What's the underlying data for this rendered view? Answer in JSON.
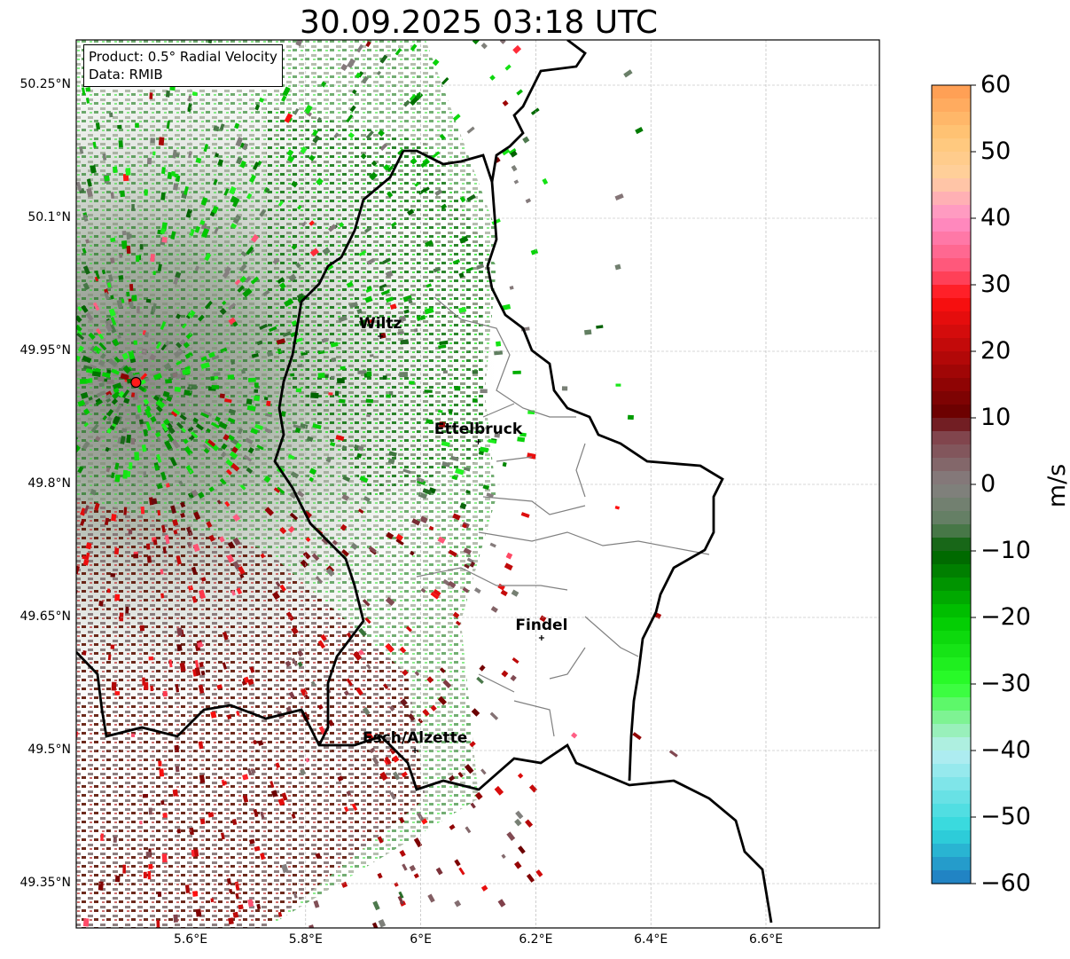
{
  "title": "30.09.2025 03:18 UTC",
  "info": {
    "product": "Product: 0.5° Radial Velocity",
    "data": "Data: RMIB"
  },
  "map": {
    "extent": {
      "lon_min": 5.4,
      "lon_max": 6.8,
      "lat_min": 49.3,
      "lat_max": 50.3
    },
    "lat_ticks": [
      {
        "value": 50.25,
        "label": "50.25°N"
      },
      {
        "value": 50.1,
        "label": "50.1°N"
      },
      {
        "value": 49.95,
        "label": "49.95°N"
      },
      {
        "value": 49.8,
        "label": "49.8°N"
      },
      {
        "value": 49.65,
        "label": "49.65°N"
      },
      {
        "value": 49.5,
        "label": "49.5°N"
      },
      {
        "value": 49.35,
        "label": "49.35°N"
      }
    ],
    "lon_ticks": [
      {
        "value": 5.6,
        "label": "5.6°E"
      },
      {
        "value": 5.8,
        "label": "5.8°E"
      },
      {
        "value": 6.0,
        "label": "6°E"
      },
      {
        "value": 6.2,
        "label": "6.2°E"
      },
      {
        "value": 6.4,
        "label": "6.4°E"
      },
      {
        "value": 6.6,
        "label": "6.6°E"
      }
    ],
    "radar_site": {
      "lon": 5.505,
      "lat": 49.915
    },
    "cities": [
      {
        "name": "Wiltz",
        "lon": 5.93,
        "lat": 49.967
      },
      {
        "name": "Ettelbruck",
        "lon": 6.1,
        "lat": 49.848
      },
      {
        "name": "Findel",
        "lon": 6.21,
        "lat": 49.627
      },
      {
        "name": "Esch/Alzette",
        "lon": 5.99,
        "lat": 49.5
      }
    ]
  },
  "colorbar": {
    "unit": "m/s",
    "ticks": [
      {
        "value": 60,
        "label": "60"
      },
      {
        "value": 50,
        "label": "50"
      },
      {
        "value": 40,
        "label": "40"
      },
      {
        "value": 30,
        "label": "30"
      },
      {
        "value": 20,
        "label": "20"
      },
      {
        "value": 10,
        "label": "10"
      },
      {
        "value": 0,
        "label": "0"
      },
      {
        "value": -10,
        "label": "−10"
      },
      {
        "value": -20,
        "label": "−20"
      },
      {
        "value": -30,
        "label": "−30"
      },
      {
        "value": -40,
        "label": "−40"
      },
      {
        "value": -50,
        "label": "−50"
      },
      {
        "value": -60,
        "label": "−60"
      }
    ],
    "range": [
      -60,
      60
    ],
    "color_stops": [
      {
        "v": -60,
        "c": "#1f78c0"
      },
      {
        "v": -52,
        "c": "#2fd8dc"
      },
      {
        "v": -40,
        "c": "#b8eef2"
      },
      {
        "v": -36,
        "c": "#8ef0a8"
      },
      {
        "v": -30,
        "c": "#2cff2c"
      },
      {
        "v": -20,
        "c": "#00c800"
      },
      {
        "v": -10,
        "c": "#005f00"
      },
      {
        "v": -6,
        "c": "#5f7f5f"
      },
      {
        "v": 0,
        "c": "#858080"
      },
      {
        "v": 8,
        "c": "#803c46"
      },
      {
        "v": 10,
        "c": "#640000"
      },
      {
        "v": 28,
        "c": "#ff1010"
      },
      {
        "v": 32,
        "c": "#ff5070"
      },
      {
        "v": 40,
        "c": "#ff90c8"
      },
      {
        "v": 46,
        "c": "#ffd0a0"
      },
      {
        "v": 52,
        "c": "#ffc878"
      },
      {
        "v": 60,
        "c": "#ff9a50"
      }
    ]
  }
}
